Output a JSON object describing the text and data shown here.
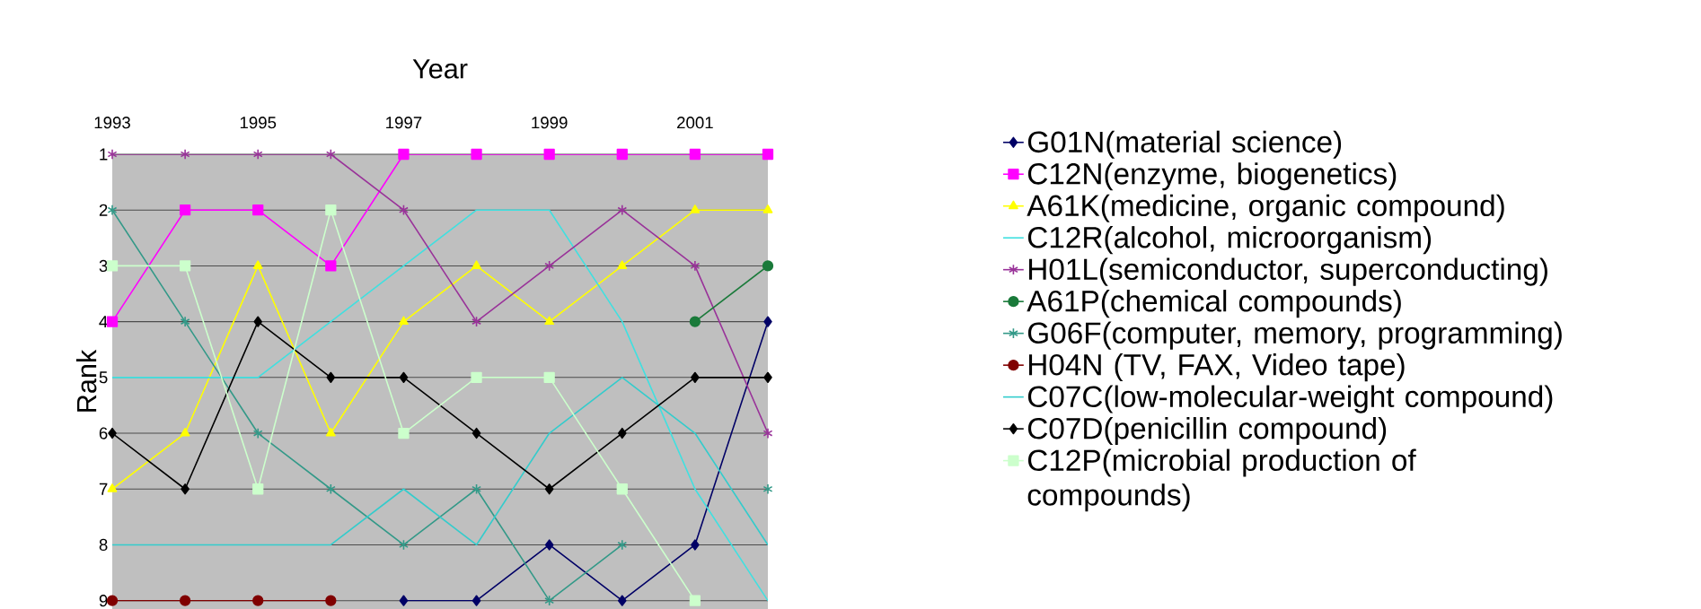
{
  "chart_data": {
    "type": "line",
    "xlabel": "Year",
    "ylabel": "Rank",
    "x": [
      1993,
      1994,
      1995,
      1996,
      1997,
      1998,
      1999,
      2000,
      2001,
      2002
    ],
    "xlim": [
      1993,
      2002
    ],
    "xticks": [
      1993,
      1995,
      1997,
      1999,
      2001
    ],
    "ylim": [
      9.15,
      1
    ],
    "yticks": [
      1,
      2,
      3,
      4,
      5,
      6,
      7,
      8,
      9
    ],
    "grid": "y",
    "legend": "right",
    "series": [
      {
        "name": "G01N(material science)",
        "color": "#000066",
        "marker": "diamond",
        "values": [
          null,
          null,
          null,
          null,
          9,
          9,
          8,
          9,
          8,
          4
        ]
      },
      {
        "name": "C12N(enzyme, biogenetics)",
        "color": "#ff00ff",
        "marker": "square",
        "values": [
          4,
          2,
          2,
          3,
          1,
          1,
          1,
          1,
          1,
          1
        ]
      },
      {
        "name": "A61K(medicine, organic compound)",
        "color": "#ffff00",
        "marker": "triangle",
        "values": [
          7,
          6,
          3,
          6,
          4,
          3,
          4,
          3,
          2,
          2
        ]
      },
      {
        "name": "C12R(alcohol, microorganism)",
        "color": "#40e0e0",
        "marker": "none",
        "values": [
          5,
          5,
          5,
          4,
          3,
          2,
          2,
          4,
          7,
          9
        ]
      },
      {
        "name": "H01L(semiconductor, superconducting)",
        "color": "#993399",
        "marker": "cross",
        "values": [
          1,
          1,
          1,
          1,
          2,
          4,
          3,
          2,
          3,
          6
        ]
      },
      {
        "name": "A61P(chemical compounds)",
        "color": "#1a7a3a",
        "marker": "circle",
        "values": [
          null,
          null,
          null,
          null,
          null,
          null,
          null,
          null,
          4,
          3
        ]
      },
      {
        "name": "G06F(computer, memory, programming)",
        "color": "#339988",
        "marker": "cross",
        "values": [
          2,
          4,
          6,
          7,
          8,
          7,
          9,
          8,
          null,
          7
        ]
      },
      {
        "name": "H04N (TV, FAX, Video tape)",
        "color": "#800000",
        "marker": "circle",
        "values": [
          9,
          9,
          9,
          9,
          null,
          null,
          null,
          null,
          null,
          null
        ]
      },
      {
        "name": "C07C(low-molecular-weight compound)",
        "color": "#33cccc",
        "marker": "none",
        "values": [
          8,
          8,
          8,
          8,
          7,
          8,
          6,
          5,
          6,
          8
        ]
      },
      {
        "name": "C07D(penicillin compound)",
        "color": "#000000",
        "marker": "diamond",
        "values": [
          6,
          7,
          4,
          5,
          5,
          6,
          7,
          6,
          5,
          5
        ]
      },
      {
        "name": "C12P(microbial production of compounds)",
        "color": "#ccffcc",
        "marker": "square",
        "values": [
          3,
          3,
          7,
          2,
          6,
          5,
          5,
          7,
          9,
          null
        ]
      }
    ]
  }
}
